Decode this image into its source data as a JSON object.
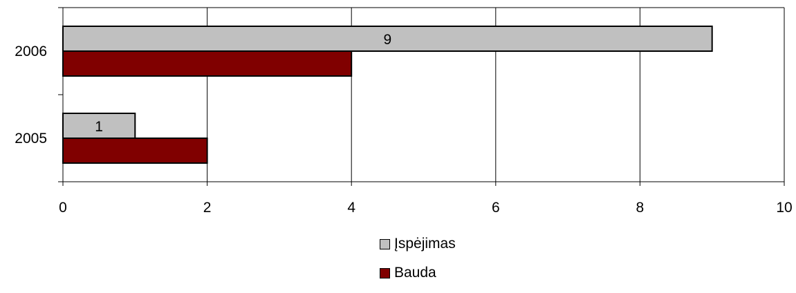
{
  "chart_data": {
    "type": "bar",
    "orientation": "horizontal",
    "categories": [
      "2006",
      "2005"
    ],
    "series": [
      {
        "name": "Įspėjimas",
        "values": [
          9,
          1
        ],
        "color": "#c0c0c0",
        "data_labels": [
          "9",
          "1"
        ]
      },
      {
        "name": "Bauda",
        "values": [
          4,
          2
        ],
        "color": "#800000"
      }
    ],
    "xlim": [
      0,
      10
    ],
    "x_ticks": [
      "0",
      "2",
      "4",
      "6",
      "8",
      "10"
    ],
    "grid": true,
    "legend_position": "bottom"
  }
}
